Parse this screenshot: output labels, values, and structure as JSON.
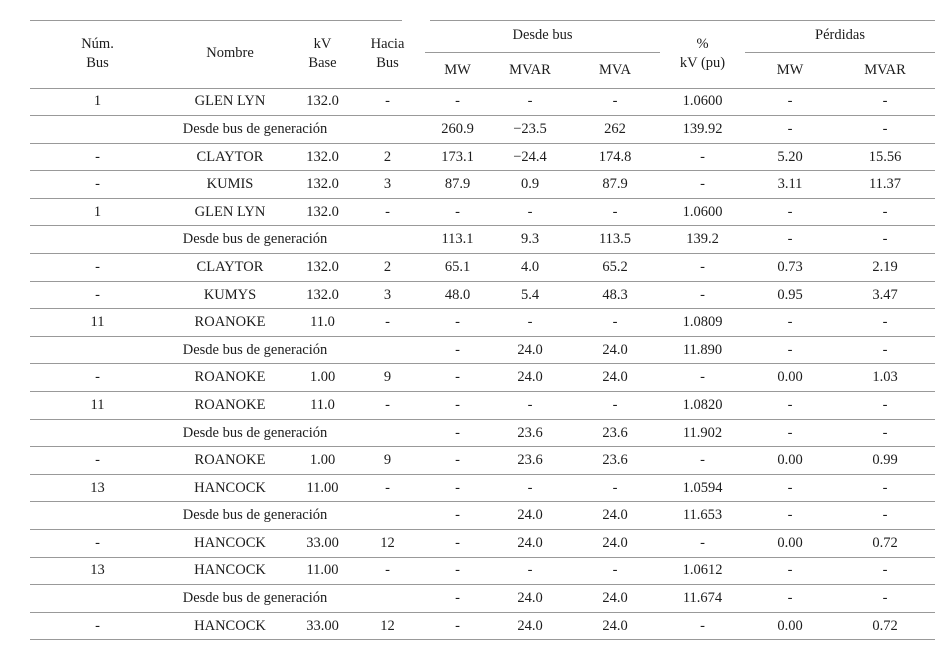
{
  "page": {
    "background": "#ffffff",
    "line_color": "#999999",
    "text_color": "#1c1c1c"
  },
  "table": {
    "header": {
      "num_bus": "Núm.\nBus",
      "nombre": "Nombre",
      "kv_base": "kV\nBase",
      "hacia_bus": "Hacia\nBus",
      "desde_bus_group": "Desde bus",
      "desde_bus_sub": [
        "MW",
        "MVAR",
        "MVA"
      ],
      "pct_kv": "%\nkV (pu)",
      "perdidas_group": "Pérdidas",
      "perdidas_sub": [
        "MW",
        "MVAR"
      ]
    },
    "rows": [
      {
        "type": "data",
        "cells": [
          "1",
          "GLEN LYN",
          "132.0",
          "-",
          "-",
          "-",
          "-",
          "1.0600",
          "-",
          "-"
        ]
      },
      {
        "type": "gen",
        "label": "Desde bus de generación",
        "values": [
          "260.9",
          "−23.5",
          "262",
          "139.92",
          "-",
          "-"
        ]
      },
      {
        "type": "data",
        "cells": [
          "-",
          "CLAYTOR",
          "132.0",
          "2",
          "173.1",
          "−24.4",
          "174.8",
          "-",
          "5.20",
          "15.56"
        ]
      },
      {
        "type": "data",
        "cells": [
          "-",
          "KUMIS",
          "132.0",
          "3",
          "87.9",
          "0.9",
          "87.9",
          "-",
          "3.11",
          "11.37"
        ]
      },
      {
        "type": "data",
        "cells": [
          "1",
          "GLEN LYN",
          "132.0",
          "-",
          "-",
          "-",
          "-",
          "1.0600",
          "-",
          "-"
        ]
      },
      {
        "type": "gen",
        "label": "Desde bus de generación",
        "values": [
          "113.1",
          "9.3",
          "113.5",
          "139.2",
          "-",
          "-"
        ]
      },
      {
        "type": "data",
        "cells": [
          "-",
          "CLAYTOR",
          "132.0",
          "2",
          "65.1",
          "4.0",
          "65.2",
          "-",
          "0.73",
          "2.19"
        ]
      },
      {
        "type": "data",
        "cells": [
          "-",
          "KUMYS",
          "132.0",
          "3",
          "48.0",
          "5.4",
          "48.3",
          "-",
          "0.95",
          "3.47"
        ]
      },
      {
        "type": "data",
        "cells": [
          "11",
          "ROANOKE",
          "11.0",
          "-",
          "-",
          "-",
          "-",
          "1.0809",
          "-",
          "-"
        ]
      },
      {
        "type": "gen",
        "label": "Desde bus de generación",
        "values": [
          "-",
          "24.0",
          "24.0",
          "11.890",
          "-",
          "-"
        ]
      },
      {
        "type": "data",
        "cells": [
          "-",
          "ROANOKE",
          "1.00",
          "9",
          "-",
          "24.0",
          "24.0",
          "-",
          "0.00",
          "1.03"
        ]
      },
      {
        "type": "data",
        "cells": [
          "11",
          "ROANOKE",
          "11.0",
          "-",
          "-",
          "-",
          "-",
          "1.0820",
          "-",
          "-"
        ]
      },
      {
        "type": "gen",
        "label": "Desde bus de generación",
        "values": [
          "-",
          "23.6",
          "23.6",
          "11.902",
          "-",
          "-"
        ]
      },
      {
        "type": "data",
        "cells": [
          "-",
          "ROANOKE",
          "1.00",
          "9",
          "-",
          "23.6",
          "23.6",
          "-",
          "0.00",
          "0.99"
        ]
      },
      {
        "type": "data",
        "cells": [
          "13",
          "HANCOCK",
          "11.00",
          "-",
          "-",
          "-",
          "-",
          "1.0594",
          "-",
          "-"
        ]
      },
      {
        "type": "gen",
        "label": "Desde bus de generación",
        "values": [
          "-",
          "24.0",
          "24.0",
          "11.653",
          "-",
          "-"
        ]
      },
      {
        "type": "data",
        "cells": [
          "-",
          "HANCOCK",
          "33.00",
          "12",
          "-",
          "24.0",
          "24.0",
          "-",
          "0.00",
          "0.72"
        ]
      },
      {
        "type": "data",
        "cells": [
          "13",
          "HANCOCK",
          "11.00",
          "-",
          "-",
          "-",
          "-",
          "1.0612",
          "-",
          "-"
        ]
      },
      {
        "type": "gen",
        "label": "Desde bus de generación",
        "values": [
          "-",
          "24.0",
          "24.0",
          "11.674",
          "-",
          "-"
        ]
      },
      {
        "type": "data",
        "cells": [
          "-",
          "HANCOCK",
          "33.00",
          "12",
          "-",
          "24.0",
          "24.0",
          "-",
          "0.00",
          "0.72"
        ]
      }
    ]
  }
}
